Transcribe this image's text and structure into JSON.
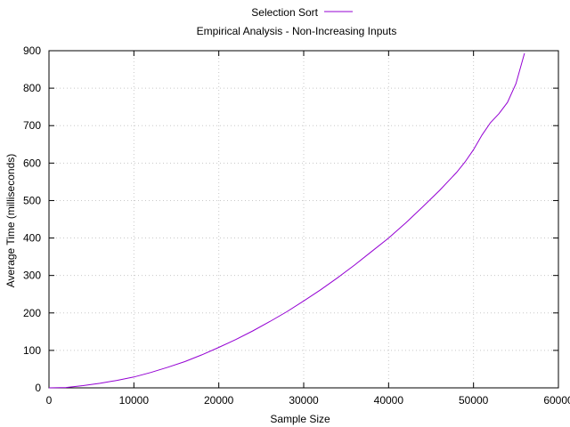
{
  "chart_data": {
    "type": "line",
    "title": "Empirical Analysis - Non-Increasing Inputs",
    "xlabel": "Sample Size",
    "ylabel": "Average Time (milliseconds)",
    "xlim": [
      0,
      60000
    ],
    "ylim": [
      0,
      900
    ],
    "xticks": [
      "0",
      "10000",
      "20000",
      "30000",
      "40000",
      "50000",
      "60000"
    ],
    "yticks": [
      "0",
      "100",
      "200",
      "300",
      "400",
      "500",
      "600",
      "700",
      "800",
      "900"
    ],
    "grid": true,
    "legend_position": "top-center",
    "series": [
      {
        "name": "Selection Sort",
        "color": "#9400d3",
        "x": [
          0,
          2000,
          4000,
          6000,
          8000,
          10000,
          12000,
          14000,
          16000,
          18000,
          20000,
          22000,
          24000,
          26000,
          28000,
          30000,
          32000,
          34000,
          36000,
          38000,
          40000,
          42000,
          44000,
          46000,
          48000,
          49000,
          50000,
          51000,
          52000,
          53000,
          54000,
          55000,
          56000
        ],
        "y": [
          0,
          1,
          6,
          12,
          20,
          29,
          41,
          55,
          70,
          88,
          108,
          129,
          152,
          177,
          203,
          232,
          262,
          294,
          328,
          364,
          400,
          440,
          483,
          527,
          575,
          603,
          636,
          675,
          708,
          732,
          762,
          812,
          893
        ]
      }
    ]
  }
}
